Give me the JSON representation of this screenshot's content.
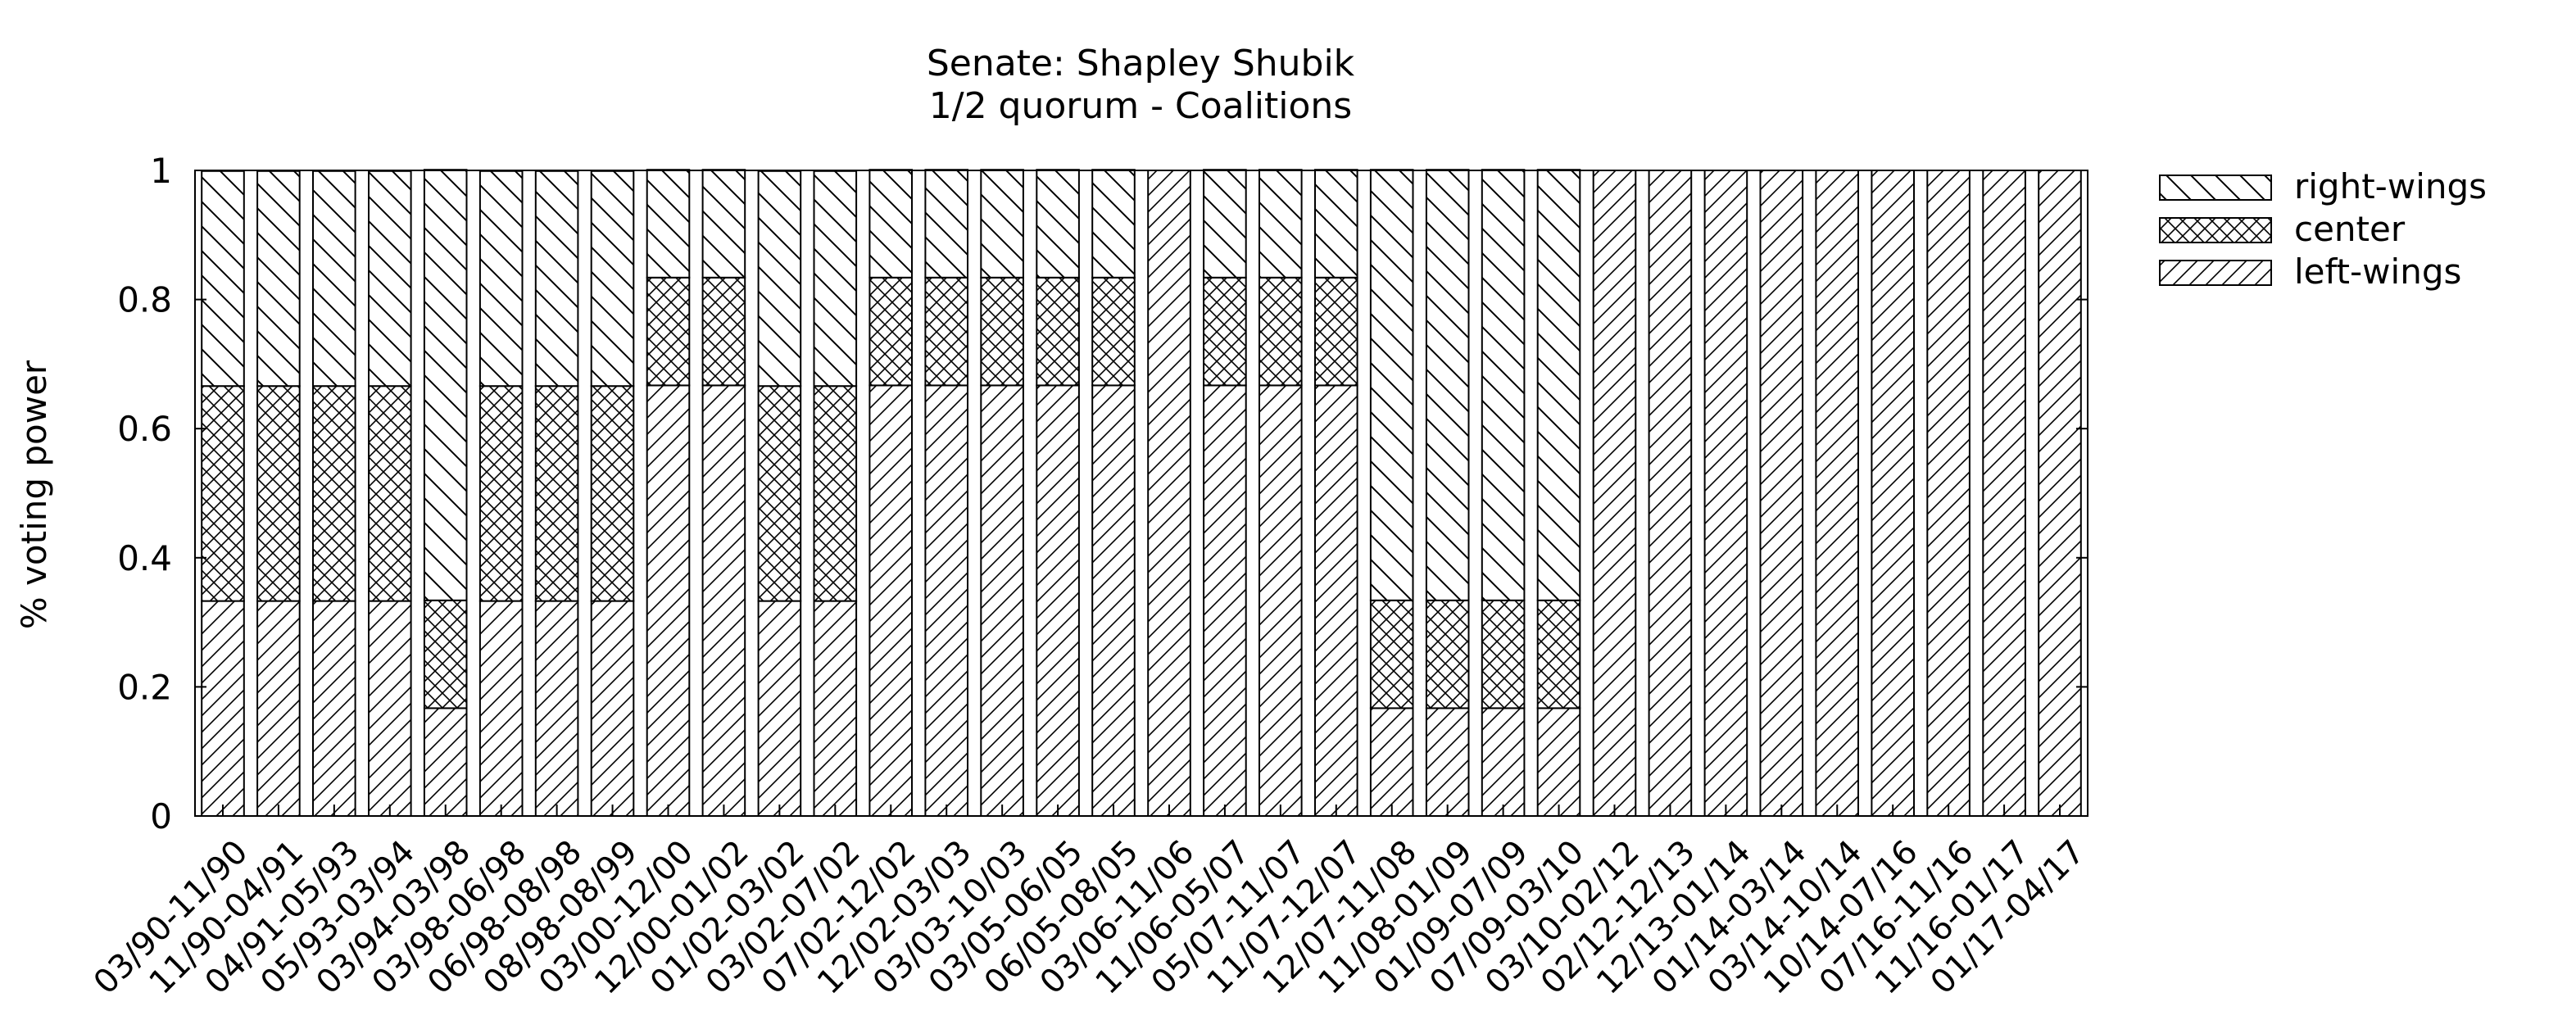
{
  "chart_data": {
    "type": "bar",
    "stacked": true,
    "title": "Senate: Shapley Shubik",
    "subtitle": "1/2 quorum - Coalitions",
    "xlabel": "",
    "ylabel": "% voting power",
    "ylim": [
      0,
      1
    ],
    "yticks": [
      "0",
      "0.2",
      "0.4",
      "0.6",
      "0.8",
      "1"
    ],
    "grid": false,
    "legend_position": "top-right, outside plot",
    "categories": [
      "03/90-11/90",
      "11/90-04/91",
      "04/91-05/93",
      "05/93-03/94",
      "03/94-03/98",
      "03/98-06/98",
      "06/98-08/98",
      "08/98-08/99",
      "03/00-12/00",
      "12/00-01/02",
      "01/02-03/02",
      "03/02-07/02",
      "07/02-12/02",
      "12/02-03/03",
      "03/03-10/03",
      "03/05-06/05",
      "06/05-08/05",
      "03/06-11/06",
      "11/06-05/07",
      "05/07-11/07",
      "11/07-12/07",
      "12/07-11/08",
      "11/08-01/09",
      "01/09-07/09",
      "07/09-03/10",
      "03/10-02/12",
      "02/12-12/13",
      "12/13-01/14",
      "01/14-03/14",
      "03/14-10/14",
      "10/14-07/16",
      "07/16-11/16",
      "11/16-01/17",
      "01/17-04/17"
    ],
    "series": [
      {
        "name": "left-wings",
        "pattern": "diagonal-up",
        "values": [
          0.333,
          0.333,
          0.333,
          0.333,
          0.167,
          0.333,
          0.333,
          0.333,
          0.667,
          0.667,
          0.333,
          0.333,
          0.667,
          0.667,
          0.667,
          0.667,
          0.667,
          1,
          0.667,
          0.667,
          0.667,
          0.167,
          0.167,
          0.167,
          0.167,
          1,
          1,
          1,
          1,
          1,
          1,
          1,
          1,
          1
        ]
      },
      {
        "name": "center",
        "pattern": "crosshatch",
        "values": [
          0.333,
          0.333,
          0.333,
          0.333,
          0.167,
          0.333,
          0.333,
          0.333,
          0.167,
          0.167,
          0.333,
          0.333,
          0.167,
          0.167,
          0.167,
          0.167,
          0.167,
          0,
          0.167,
          0.167,
          0.167,
          0.167,
          0.167,
          0.167,
          0.167,
          0,
          0,
          0,
          0,
          0,
          0,
          0,
          0,
          0
        ]
      },
      {
        "name": "right-wings",
        "pattern": "diagonal-down",
        "values": [
          0.333,
          0.333,
          0.333,
          0.333,
          0.667,
          0.333,
          0.333,
          0.333,
          0.167,
          0.167,
          0.333,
          0.333,
          0.167,
          0.167,
          0.167,
          0.167,
          0.167,
          0,
          0.167,
          0.167,
          0.167,
          0.667,
          0.667,
          0.667,
          0.667,
          0,
          0,
          0,
          0,
          0,
          0,
          0,
          0,
          0
        ]
      }
    ],
    "legend_order": [
      "right-wings",
      "center",
      "left-wings"
    ]
  }
}
